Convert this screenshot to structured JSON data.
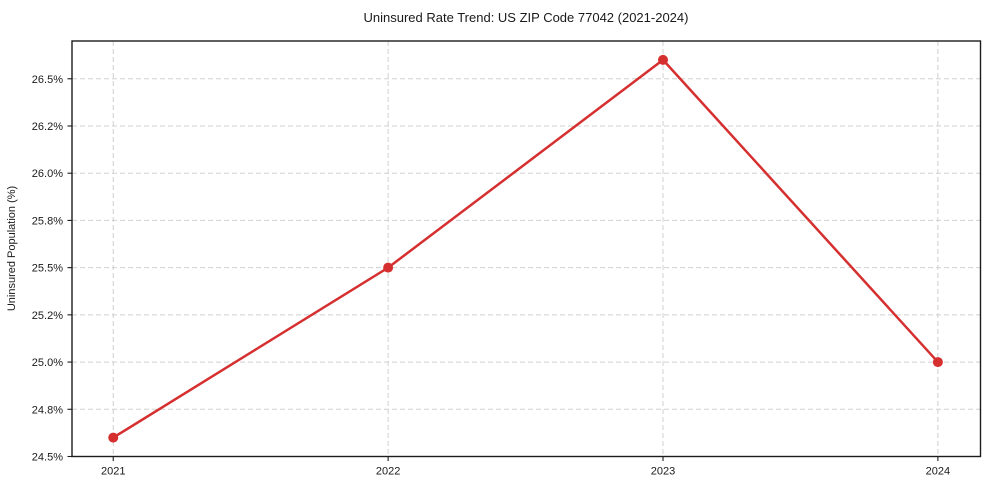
{
  "chart_data": {
    "type": "line",
    "title": "Uninsured Rate Trend: US ZIP Code 77042 (2021-2024)",
    "xlabel": "",
    "ylabel": "Uninsured Population (%)",
    "x": [
      2021,
      2022,
      2023,
      2024
    ],
    "x_tick_labels": [
      "2021",
      "2022",
      "2023",
      "2024"
    ],
    "series": [
      {
        "name": "Uninsured rate",
        "values": [
          24.6,
          25.5,
          26.6,
          25.0
        ]
      }
    ],
    "y_ticks": [
      {
        "value": 24.5,
        "label": "24.5%"
      },
      {
        "value": 24.75,
        "label": "24.8%"
      },
      {
        "value": 25.0,
        "label": "25.0%"
      },
      {
        "value": 25.25,
        "label": "25.2%"
      },
      {
        "value": 25.5,
        "label": "25.5%"
      },
      {
        "value": 25.75,
        "label": "25.8%"
      },
      {
        "value": 26.0,
        "label": "26.0%"
      },
      {
        "value": 26.25,
        "label": "26.2%"
      },
      {
        "value": 26.5,
        "label": "26.5%"
      }
    ],
    "xlim": [
      2020.85,
      2024.155
    ],
    "ylim": [
      24.5,
      26.7
    ],
    "grid": true,
    "grid_style": "dashed",
    "legend": false,
    "colors": {
      "line": "#d62f2f",
      "marker": "#d62f2f",
      "grid": "#d0d0d0",
      "axis": "#1c1c1c",
      "text": "#1a1a1a",
      "background": "#ffffff"
    }
  }
}
